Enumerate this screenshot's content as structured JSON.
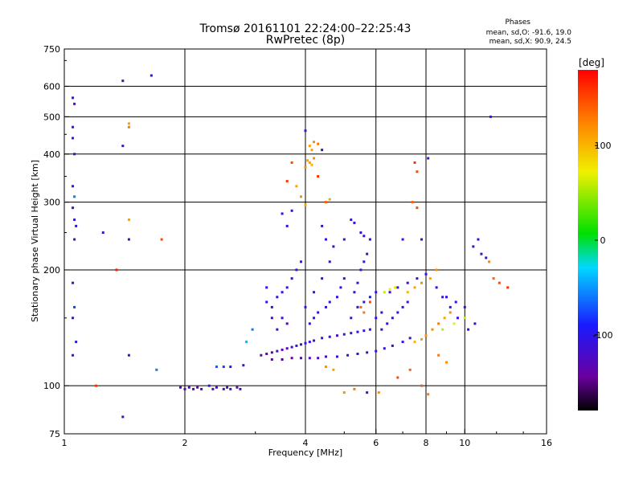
{
  "chart_data": {
    "type": "scatter",
    "title": "Tromsø 20161101 22:24:00–22:25:43",
    "subtitle": "RwPretec (8p)",
    "xlabel": "Frequency [MHz]",
    "ylabel": "Stationary phase Virtual Height [km]",
    "x_scale": "log",
    "y_scale": "log",
    "xlim": [
      1,
      16
    ],
    "ylim": [
      75,
      750
    ],
    "x_ticks": [
      1,
      2,
      4,
      6,
      8,
      10,
      16
    ],
    "x_tick_labels": [
      "1",
      "2",
      "4",
      "6",
      "8",
      "10",
      "16"
    ],
    "y_ticks": [
      75,
      100,
      200,
      300,
      400,
      500,
      600,
      750
    ],
    "y_tick_labels": [
      "75",
      "100",
      "200",
      "300",
      "400",
      "500",
      "600",
      "750"
    ],
    "grid": true,
    "phase_info": {
      "title": "Phases",
      "line1": "mean, sd,O: -91.6, 19.0",
      "line2": "mean, sd,X:  90.9, 24.5"
    },
    "colorbar": {
      "label": "[deg]",
      "range": [
        -180,
        180
      ],
      "ticks": [
        100,
        0,
        -100
      ],
      "tick_labels": [
        "100",
        "0",
        "-100"
      ],
      "colormap": "rainbow"
    },
    "series": [
      {
        "values": [
          [
            1.05,
            560,
            -110
          ],
          [
            1.06,
            540,
            -120
          ],
          [
            1.05,
            470,
            -100
          ],
          [
            1.05,
            440,
            -90
          ],
          [
            1.06,
            400,
            -110
          ],
          [
            1.05,
            330,
            -110
          ],
          [
            1.06,
            310,
            -60
          ],
          [
            1.05,
            290,
            -110
          ],
          [
            1.06,
            270,
            -100
          ],
          [
            1.07,
            260,
            -110
          ],
          [
            1.06,
            240,
            -120
          ],
          [
            1.05,
            185,
            -110
          ],
          [
            1.06,
            160,
            -80
          ],
          [
            1.05,
            150,
            -110
          ],
          [
            1.07,
            130,
            -90
          ],
          [
            1.05,
            120,
            -100
          ],
          [
            1.4,
            620,
            -120
          ],
          [
            1.65,
            640,
            -110
          ],
          [
            1.4,
            420,
            -120
          ],
          [
            1.45,
            480,
            110
          ],
          [
            1.45,
            470,
            130
          ],
          [
            1.45,
            270,
            110
          ],
          [
            1.45,
            240,
            -120
          ],
          [
            1.25,
            250,
            -110
          ],
          [
            1.35,
            200,
            170
          ],
          [
            1.45,
            120,
            -110
          ],
          [
            1.4,
            83,
            -110
          ],
          [
            1.7,
            110,
            -60
          ],
          [
            1.75,
            240,
            150
          ],
          [
            1.2,
            100,
            160
          ],
          [
            1.95,
            99,
            -130
          ],
          [
            2.0,
            98,
            -140
          ],
          [
            2.05,
            99,
            -120
          ],
          [
            2.1,
            98,
            -130
          ],
          [
            2.15,
            99,
            -140
          ],
          [
            2.2,
            98,
            -120
          ],
          [
            2.3,
            100,
            -110
          ],
          [
            2.35,
            98,
            -130
          ],
          [
            2.4,
            99,
            -120
          ],
          [
            2.5,
            98,
            -140
          ],
          [
            2.55,
            99,
            -110
          ],
          [
            2.6,
            98,
            -120
          ],
          [
            2.7,
            99,
            -130
          ],
          [
            2.75,
            98,
            -120
          ],
          [
            2.4,
            112,
            -70
          ],
          [
            2.5,
            112,
            -80
          ],
          [
            2.6,
            112,
            -90
          ],
          [
            2.8,
            113,
            -100
          ],
          [
            2.85,
            130,
            -40
          ],
          [
            2.95,
            140,
            -60
          ],
          [
            3.1,
            120,
            -130
          ],
          [
            3.2,
            121,
            -140
          ],
          [
            3.3,
            122,
            -130
          ],
          [
            3.4,
            123,
            -120
          ],
          [
            3.5,
            124,
            -140
          ],
          [
            3.6,
            125,
            -130
          ],
          [
            3.7,
            126,
            -120
          ],
          [
            3.8,
            127,
            -110
          ],
          [
            3.9,
            128,
            -120
          ],
          [
            4.0,
            129,
            -100
          ],
          [
            4.1,
            130,
            -110
          ],
          [
            4.2,
            131,
            -120
          ],
          [
            4.4,
            133,
            -100
          ],
          [
            4.6,
            134,
            -110
          ],
          [
            4.8,
            135,
            -120
          ],
          [
            5.0,
            136,
            -110
          ],
          [
            5.2,
            137,
            -100
          ],
          [
            5.4,
            138,
            -110
          ],
          [
            5.6,
            139,
            -100
          ],
          [
            5.8,
            140,
            -110
          ],
          [
            3.3,
            117,
            -140
          ],
          [
            3.5,
            117,
            -150
          ],
          [
            3.7,
            118,
            -140
          ],
          [
            3.9,
            118,
            -130
          ],
          [
            4.1,
            118,
            -120
          ],
          [
            4.3,
            118,
            -130
          ],
          [
            4.5,
            119,
            -120
          ],
          [
            4.8,
            119,
            -110
          ],
          [
            5.1,
            120,
            -120
          ],
          [
            5.4,
            121,
            -110
          ],
          [
            5.7,
            122,
            -100
          ],
          [
            6.0,
            123,
            -110
          ],
          [
            6.3,
            125,
            -100
          ],
          [
            6.6,
            127,
            -110
          ],
          [
            7.0,
            130,
            -100
          ],
          [
            7.3,
            133,
            -120
          ],
          [
            3.2,
            165,
            -110
          ],
          [
            3.3,
            160,
            -120
          ],
          [
            3.4,
            170,
            -110
          ],
          [
            3.5,
            175,
            -100
          ],
          [
            3.6,
            180,
            -110
          ],
          [
            3.7,
            190,
            -100
          ],
          [
            3.8,
            200,
            -110
          ],
          [
            3.9,
            210,
            -100
          ],
          [
            3.5,
            150,
            -120
          ],
          [
            3.6,
            145,
            -130
          ],
          [
            3.3,
            150,
            -120
          ],
          [
            3.4,
            140,
            -110
          ],
          [
            3.2,
            180,
            -100
          ],
          [
            4.1,
            145,
            -110
          ],
          [
            4.2,
            150,
            -100
          ],
          [
            4.3,
            155,
            -110
          ],
          [
            4.5,
            160,
            -100
          ],
          [
            4.6,
            165,
            -110
          ],
          [
            4.8,
            170,
            -100
          ],
          [
            4.9,
            180,
            -110
          ],
          [
            5.0,
            190,
            -110
          ],
          [
            4.0,
            160,
            -100
          ],
          [
            4.2,
            175,
            -110
          ],
          [
            4.4,
            190,
            -100
          ],
          [
            4.6,
            210,
            -110
          ],
          [
            4.7,
            230,
            -110
          ],
          [
            4.5,
            240,
            -100
          ],
          [
            4.4,
            260,
            -110
          ],
          [
            5.3,
            175,
            -110
          ],
          [
            5.4,
            185,
            -100
          ],
          [
            5.5,
            200,
            -110
          ],
          [
            5.6,
            210,
            -100
          ],
          [
            5.7,
            220,
            -110
          ],
          [
            5.2,
            150,
            -110
          ],
          [
            5.4,
            160,
            -100
          ],
          [
            5.6,
            165,
            -110
          ],
          [
            5.8,
            170,
            -100
          ],
          [
            6.0,
            175,
            -110
          ],
          [
            6.2,
            140,
            -110
          ],
          [
            6.4,
            145,
            -100
          ],
          [
            6.6,
            150,
            -110
          ],
          [
            6.8,
            155,
            -100
          ],
          [
            7.0,
            160,
            -110
          ],
          [
            7.2,
            165,
            -100
          ],
          [
            6.0,
            150,
            -100
          ],
          [
            6.2,
            155,
            -110
          ],
          [
            6.5,
            175,
            -110
          ],
          [
            6.8,
            180,
            -100
          ],
          [
            7.2,
            185,
            -110
          ],
          [
            7.6,
            190,
            -100
          ],
          [
            8.0,
            195,
            -110
          ],
          [
            8.5,
            180,
            -110
          ],
          [
            9.0,
            170,
            -100
          ],
          [
            9.5,
            165,
            -110
          ],
          [
            10.0,
            160,
            -100
          ],
          [
            7.5,
            130,
            100
          ],
          [
            7.8,
            132,
            110
          ],
          [
            8.0,
            135,
            120
          ],
          [
            8.3,
            140,
            120
          ],
          [
            8.6,
            145,
            130
          ],
          [
            8.9,
            150,
            110
          ],
          [
            9.2,
            155,
            120
          ],
          [
            7.2,
            175,
            100
          ],
          [
            7.5,
            180,
            110
          ],
          [
            7.8,
            185,
            120
          ],
          [
            8.2,
            190,
            110
          ],
          [
            8.5,
            200,
            120
          ],
          [
            6.3,
            175,
            60
          ],
          [
            6.5,
            178,
            70
          ],
          [
            6.7,
            180,
            80
          ],
          [
            5.5,
            160,
            140
          ],
          [
            5.6,
            155,
            130
          ],
          [
            5.8,
            165,
            150
          ],
          [
            4.0,
            370,
            120
          ],
          [
            4.1,
            380,
            110
          ],
          [
            4.2,
            390,
            120
          ],
          [
            4.15,
            375,
            100
          ],
          [
            4.05,
            385,
            110
          ],
          [
            4.1,
            420,
            110
          ],
          [
            4.2,
            430,
            120
          ],
          [
            4.3,
            425,
            130
          ],
          [
            4.15,
            410,
            110
          ],
          [
            4.0,
            460,
            -100
          ],
          [
            4.4,
            410,
            -110
          ],
          [
            3.7,
            380,
            150
          ],
          [
            3.6,
            340,
            160
          ],
          [
            3.8,
            330,
            110
          ],
          [
            4.3,
            350,
            160
          ],
          [
            4.5,
            300,
            140
          ],
          [
            4.6,
            305,
            110
          ],
          [
            3.9,
            310,
            120
          ],
          [
            4.0,
            295,
            110
          ],
          [
            3.5,
            280,
            -110
          ],
          [
            3.7,
            285,
            -100
          ],
          [
            3.6,
            260,
            -110
          ],
          [
            5.2,
            270,
            -110
          ],
          [
            5.3,
            265,
            -100
          ],
          [
            5.5,
            250,
            -110
          ],
          [
            5.6,
            245,
            -100
          ],
          [
            5.0,
            240,
            -110
          ],
          [
            5.8,
            240,
            -110
          ],
          [
            7.5,
            380,
            160
          ],
          [
            7.6,
            360,
            150
          ],
          [
            7.4,
            300,
            140
          ],
          [
            7.6,
            290,
            150
          ],
          [
            7.8,
            240,
            -110
          ],
          [
            8.1,
            390,
            -110
          ],
          [
            7.0,
            240,
            -100
          ],
          [
            10.5,
            230,
            -110
          ],
          [
            10.8,
            240,
            -100
          ],
          [
            11.0,
            220,
            -110
          ],
          [
            11.3,
            215,
            -100
          ],
          [
            11.5,
            210,
            120
          ],
          [
            11.8,
            190,
            140
          ],
          [
            12.2,
            185,
            150
          ],
          [
            12.8,
            180,
            160
          ],
          [
            11.6,
            500,
            -110
          ],
          [
            8.6,
            120,
            130
          ],
          [
            9.0,
            115,
            120
          ],
          [
            7.3,
            110,
            140
          ],
          [
            6.8,
            105,
            150
          ],
          [
            5.3,
            98,
            130
          ],
          [
            5.0,
            96,
            120
          ],
          [
            4.7,
            110,
            110
          ],
          [
            4.5,
            112,
            120
          ],
          [
            7.8,
            100,
            140
          ],
          [
            8.1,
            95,
            130
          ],
          [
            6.1,
            96,
            120
          ],
          [
            5.7,
            96,
            -110
          ],
          [
            8.8,
            170,
            -110
          ],
          [
            9.2,
            160,
            -100
          ],
          [
            9.6,
            150,
            -110
          ],
          [
            10.2,
            140,
            -100
          ],
          [
            10.6,
            145,
            -110
          ],
          [
            9.4,
            145,
            70
          ],
          [
            10.0,
            150,
            60
          ],
          [
            8.8,
            140,
            60
          ]
        ]
      }
    ]
  }
}
